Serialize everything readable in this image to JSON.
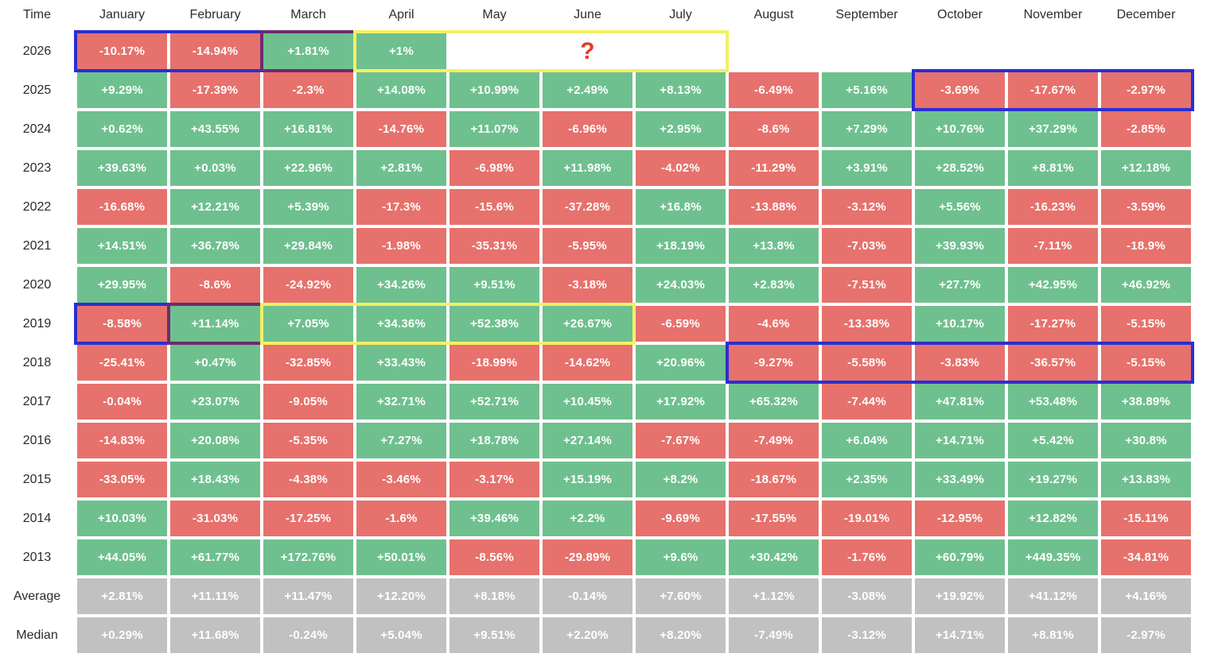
{
  "header": {
    "time_label": "Time",
    "months": [
      "January",
      "February",
      "March",
      "April",
      "May",
      "June",
      "July",
      "August",
      "September",
      "October",
      "November",
      "December"
    ]
  },
  "chart_data": {
    "type": "heatmap",
    "unit": "percent",
    "value_format": "signed percentage as displayed",
    "columns": [
      "January",
      "February",
      "March",
      "April",
      "May",
      "June",
      "July",
      "August",
      "September",
      "October",
      "November",
      "December"
    ],
    "rows": [
      {
        "label": "2026",
        "values": [
          "-10.17%",
          "-14.94%",
          "+1.81%",
          "+1%",
          null,
          null,
          null,
          null,
          null,
          null,
          null,
          null
        ],
        "merge": {
          "start": 4,
          "span": 3,
          "text": "?"
        }
      },
      {
        "label": "2025",
        "values": [
          "+9.29%",
          "-17.39%",
          "-2.3%",
          "+14.08%",
          "+10.99%",
          "+2.49%",
          "+8.13%",
          "-6.49%",
          "+5.16%",
          "-3.69%",
          "-17.67%",
          "-2.97%"
        ]
      },
      {
        "label": "2024",
        "values": [
          "+0.62%",
          "+43.55%",
          "+16.81%",
          "-14.76%",
          "+11.07%",
          "-6.96%",
          "+2.95%",
          "-8.6%",
          "+7.29%",
          "+10.76%",
          "+37.29%",
          "-2.85%"
        ]
      },
      {
        "label": "2023",
        "values": [
          "+39.63%",
          "+0.03%",
          "+22.96%",
          "+2.81%",
          "-6.98%",
          "+11.98%",
          "-4.02%",
          "-11.29%",
          "+3.91%",
          "+28.52%",
          "+8.81%",
          "+12.18%"
        ]
      },
      {
        "label": "2022",
        "values": [
          "-16.68%",
          "+12.21%",
          "+5.39%",
          "-17.3%",
          "-15.6%",
          "-37.28%",
          "+16.8%",
          "-13.88%",
          "-3.12%",
          "+5.56%",
          "-16.23%",
          "-3.59%"
        ]
      },
      {
        "label": "2021",
        "values": [
          "+14.51%",
          "+36.78%",
          "+29.84%",
          "-1.98%",
          "-35.31%",
          "-5.95%",
          "+18.19%",
          "+13.8%",
          "-7.03%",
          "+39.93%",
          "-7.11%",
          "-18.9%"
        ]
      },
      {
        "label": "2020",
        "values": [
          "+29.95%",
          "-8.6%",
          "-24.92%",
          "+34.26%",
          "+9.51%",
          "-3.18%",
          "+24.03%",
          "+2.83%",
          "-7.51%",
          "+27.7%",
          "+42.95%",
          "+46.92%"
        ]
      },
      {
        "label": "2019",
        "values": [
          "-8.58%",
          "+11.14%",
          "+7.05%",
          "+34.36%",
          "+52.38%",
          "+26.67%",
          "-6.59%",
          "-4.6%",
          "-13.38%",
          "+10.17%",
          "-17.27%",
          "-5.15%"
        ]
      },
      {
        "label": "2018",
        "values": [
          "-25.41%",
          "+0.47%",
          "-32.85%",
          "+33.43%",
          "-18.99%",
          "-14.62%",
          "+20.96%",
          "-9.27%",
          "-5.58%",
          "-3.83%",
          "-36.57%",
          "-5.15%"
        ]
      },
      {
        "label": "2017",
        "values": [
          "-0.04%",
          "+23.07%",
          "-9.05%",
          "+32.71%",
          "+52.71%",
          "+10.45%",
          "+17.92%",
          "+65.32%",
          "-7.44%",
          "+47.81%",
          "+53.48%",
          "+38.89%"
        ]
      },
      {
        "label": "2016",
        "values": [
          "-14.83%",
          "+20.08%",
          "-5.35%",
          "+7.27%",
          "+18.78%",
          "+27.14%",
          "-7.67%",
          "-7.49%",
          "+6.04%",
          "+14.71%",
          "+5.42%",
          "+30.8%"
        ]
      },
      {
        "label": "2015",
        "values": [
          "-33.05%",
          "+18.43%",
          "-4.38%",
          "-3.46%",
          "-3.17%",
          "+15.19%",
          "+8.2%",
          "-18.67%",
          "+2.35%",
          "+33.49%",
          "+19.27%",
          "+13.83%"
        ]
      },
      {
        "label": "2014",
        "values": [
          "+10.03%",
          "-31.03%",
          "-17.25%",
          "-1.6%",
          "+39.46%",
          "+2.2%",
          "-9.69%",
          "-17.55%",
          "-19.01%",
          "-12.95%",
          "+12.82%",
          "-15.11%"
        ]
      },
      {
        "label": "2013",
        "values": [
          "+44.05%",
          "+61.77%",
          "+172.76%",
          "+50.01%",
          "-8.56%",
          "-29.89%",
          "+9.6%",
          "+30.42%",
          "-1.76%",
          "+60.79%",
          "+449.35%",
          "-34.81%"
        ]
      },
      {
        "label": "Average",
        "summary": true,
        "values": [
          "+2.81%",
          "+11.11%",
          "+11.47%",
          "+12.20%",
          "+8.18%",
          "-0.14%",
          "+7.60%",
          "+1.12%",
          "-3.08%",
          "+19.92%",
          "+41.12%",
          "+4.16%"
        ]
      },
      {
        "label": "Median",
        "summary": true,
        "values": [
          "+0.29%",
          "+11.68%",
          "-0.24%",
          "+5.04%",
          "+9.51%",
          "+2.20%",
          "+8.20%",
          "-7.49%",
          "-3.12%",
          "+14.71%",
          "+8.81%",
          "-2.97%"
        ]
      }
    ],
    "legend": "green = positive month, red = negative month, gray = summary row",
    "grid": "white 4px separators between cells"
  },
  "annotations": [
    {
      "row": "2026",
      "from": 0,
      "to": 1,
      "color": "blue"
    },
    {
      "row": "2026",
      "from": 2,
      "to": 2,
      "color": "purple"
    },
    {
      "row": "2026",
      "from": 3,
      "to": 6,
      "color": "yellow"
    },
    {
      "row": "2025",
      "from": 9,
      "to": 11,
      "color": "blue"
    },
    {
      "row": "2019",
      "from": 0,
      "to": 0,
      "color": "blue"
    },
    {
      "row": "2019",
      "from": 1,
      "to": 1,
      "color": "purple"
    },
    {
      "row": "2019",
      "from": 2,
      "to": 5,
      "color": "yellow"
    },
    {
      "row": "2018",
      "from": 7,
      "to": 11,
      "color": "blue"
    }
  ],
  "colors": {
    "green": "#6fc08f",
    "red": "#e7716c",
    "gray": "#c1c1c1",
    "blue": "#2b2fd0",
    "purple": "#6d2b72",
    "yellow": "#f3f063",
    "question": "#e23a2a",
    "cell_text": "#ffffff",
    "header_text": "#2d2d2d"
  }
}
